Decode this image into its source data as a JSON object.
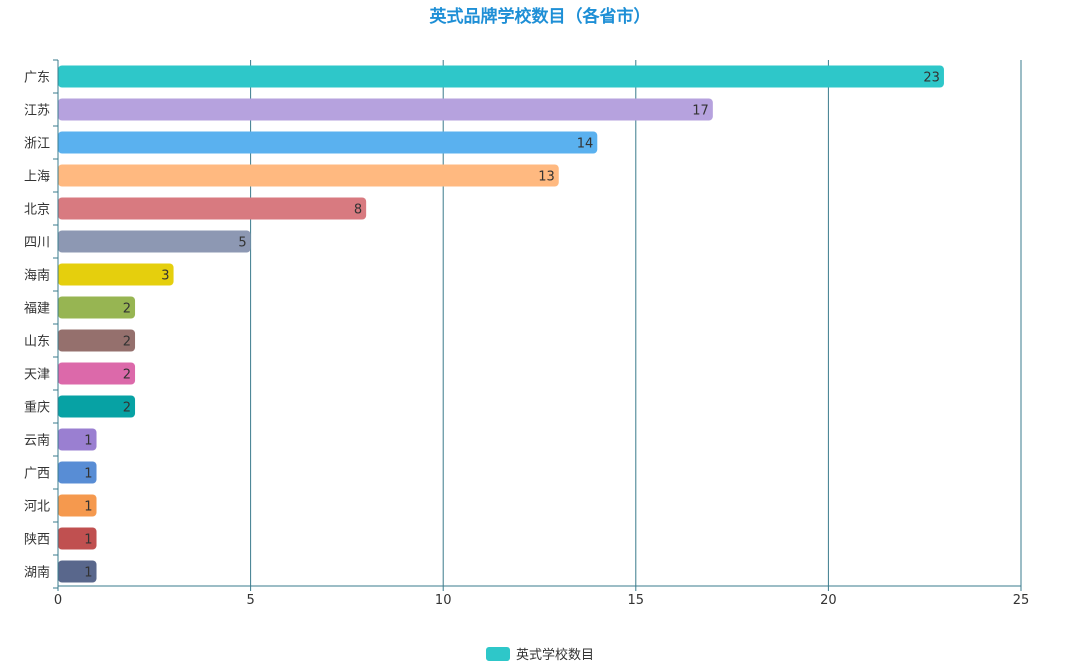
{
  "chart_data": {
    "type": "bar",
    "orientation": "horizontal",
    "title": "英式品牌学校数目（各省市）",
    "categories": [
      "广东",
      "江苏",
      "浙江",
      "上海",
      "北京",
      "四川",
      "海南",
      "福建",
      "山东",
      "天津",
      "重庆",
      "云南",
      "广西",
      "河北",
      "陕西",
      "湖南"
    ],
    "series": [
      {
        "name": "英式学校数目",
        "values": [
          23,
          17,
          14,
          13,
          8,
          5,
          3,
          2,
          2,
          2,
          2,
          1,
          1,
          1,
          1,
          1
        ]
      }
    ],
    "colors": [
      "#2ec7c9",
      "#b6a2de",
      "#5ab1ef",
      "#ffb980",
      "#d87a80",
      "#8d98b3",
      "#e5cf0d",
      "#97b552",
      "#95706d",
      "#dc69aa",
      "#07a2a4",
      "#9a7fd1",
      "#588dd5",
      "#f5994e",
      "#c05050",
      "#59678c"
    ],
    "xlim": [
      0,
      25
    ],
    "xticks": [
      0,
      5,
      10,
      15,
      20,
      25
    ],
    "grid": true,
    "legend_position": "bottom-center",
    "legend_color": "#2ec7c9",
    "title_color": "#1e8fd6",
    "axis_color": "#3a7b8c"
  }
}
